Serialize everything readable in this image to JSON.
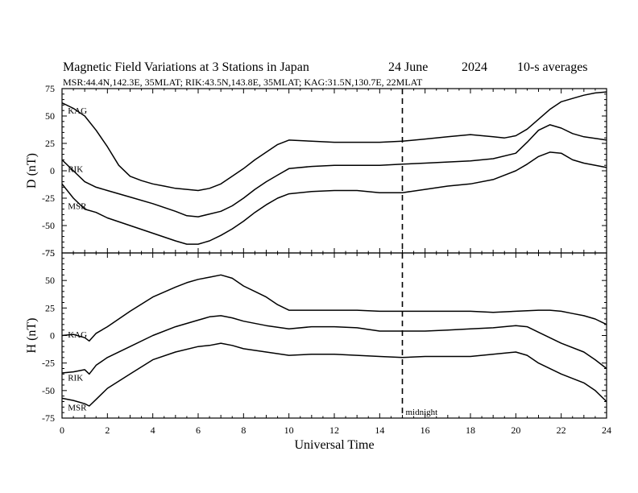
{
  "header": {
    "title": "Magnetic Field Variations at 3 Stations in Japan",
    "date": "24 June",
    "year": "2024",
    "averaging": "10-s averages",
    "stations_info": "MSR:44.4N,142.3E, 35MLAT;  RIK:43.5N,143.8E, 35MLAT;  KAG:31.5N,130.7E, 22MLAT"
  },
  "colors": {
    "line": "#000000",
    "background": "#ffffff"
  },
  "chart_data": [
    {
      "type": "line",
      "panel": "top",
      "ylabel": "D (nT)",
      "xlabel": "",
      "xlim": [
        0,
        24
      ],
      "ylim": [
        -75,
        75
      ],
      "xticks": [
        0,
        2,
        4,
        6,
        8,
        10,
        12,
        14,
        16,
        18,
        20,
        22,
        24
      ],
      "yticks": [
        -75,
        -50,
        -25,
        0,
        25,
        50,
        75
      ],
      "grid": false,
      "series": [
        {
          "name": "KAG",
          "label_at": [
            0.15,
            55
          ],
          "x": [
            0,
            0.5,
            1,
            1.5,
            2,
            2.5,
            3,
            3.5,
            4,
            4.5,
            5,
            5.5,
            6,
            6.5,
            7,
            7.5,
            8,
            8.5,
            9,
            9.5,
            10,
            11,
            12,
            13,
            14,
            15,
            16,
            17,
            18,
            19,
            19.5,
            20,
            20.5,
            21,
            21.5,
            22,
            22.5,
            23,
            23.5,
            24
          ],
          "y": [
            62,
            57,
            50,
            37,
            22,
            5,
            -5,
            -9,
            -12,
            -14,
            -16,
            -17,
            -18,
            -16,
            -12,
            -5,
            2,
            10,
            17,
            24,
            28,
            27,
            26,
            26,
            26,
            27,
            29,
            31,
            33,
            31,
            30,
            32,
            38,
            47,
            56,
            63,
            66,
            69,
            71,
            72
          ]
        },
        {
          "name": "RIK",
          "label_at": [
            0.15,
            2
          ],
          "x": [
            0,
            0.5,
            1,
            1.5,
            2,
            3,
            4,
            5,
            5.5,
            6,
            7,
            7.5,
            8,
            8.5,
            9,
            9.5,
            10,
            11,
            12,
            13,
            14,
            15,
            16,
            17,
            18,
            19,
            20,
            20.5,
            21,
            21.5,
            22,
            22.5,
            23,
            24
          ],
          "y": [
            10,
            0,
            -10,
            -15,
            -18,
            -24,
            -30,
            -37,
            -41,
            -42,
            -37,
            -32,
            -25,
            -17,
            -10,
            -4,
            2,
            4,
            5,
            5,
            5,
            6,
            7,
            8,
            9,
            11,
            16,
            26,
            37,
            42,
            39,
            34,
            31,
            28
          ]
        },
        {
          "name": "MSR",
          "label_at": [
            0.15,
            -32
          ],
          "x": [
            0,
            0.5,
            1,
            1.5,
            2,
            3,
            4,
            5,
            5.5,
            6,
            6.5,
            7,
            7.5,
            8,
            8.5,
            9,
            9.5,
            10,
            11,
            12,
            13,
            14,
            15,
            16,
            17,
            18,
            19,
            20,
            20.5,
            21,
            21.5,
            22,
            22.5,
            23,
            24
          ],
          "y": [
            -12,
            -25,
            -35,
            -38,
            -43,
            -50,
            -57,
            -64,
            -67,
            -67,
            -64,
            -59,
            -53,
            -46,
            -38,
            -31,
            -25,
            -21,
            -19,
            -18,
            -18,
            -20,
            -20,
            -17,
            -14,
            -12,
            -8,
            0,
            6,
            13,
            17,
            16,
            10,
            7,
            3
          ]
        }
      ]
    },
    {
      "type": "line",
      "panel": "bottom",
      "ylabel": "H (nT)",
      "xlabel": "Universal Time",
      "xlim": [
        0,
        24
      ],
      "ylim": [
        -75,
        75
      ],
      "xticks": [
        0,
        2,
        4,
        6,
        8,
        10,
        12,
        14,
        16,
        18,
        20,
        22,
        24
      ],
      "yticks": [
        -75,
        -50,
        -25,
        0,
        25,
        50,
        75
      ],
      "grid": false,
      "annotation": {
        "text": "midnight",
        "x": 15,
        "style": "dashed-vertical-line"
      },
      "series": [
        {
          "name": "KAG",
          "label_at": [
            0.15,
            1
          ],
          "x": [
            0,
            0.5,
            1,
            1.2,
            1.5,
            2,
            3,
            4,
            5,
            5.5,
            6,
            6.5,
            7,
            7.5,
            8,
            8.5,
            9,
            9.5,
            10,
            11,
            12,
            13,
            14,
            15,
            16,
            17,
            18,
            19,
            20,
            21,
            21.5,
            22,
            22.5,
            23,
            23.5,
            24
          ],
          "y": [
            0,
            1,
            -2,
            -5,
            2,
            8,
            22,
            35,
            44,
            48,
            51,
            53,
            55,
            52,
            45,
            40,
            35,
            28,
            23,
            23,
            23,
            23,
            22,
            22,
            22,
            22,
            22,
            21,
            22,
            23,
            23,
            22,
            20,
            18,
            15,
            10
          ]
        },
        {
          "name": "RIK",
          "label_at": [
            0.15,
            -38
          ],
          "x": [
            0,
            0.5,
            1,
            1.2,
            1.5,
            2,
            3,
            4,
            5,
            6,
            6.5,
            7,
            7.5,
            8,
            9,
            10,
            11,
            12,
            13,
            14,
            15,
            16,
            17,
            18,
            19,
            20,
            20.5,
            21,
            22,
            23,
            23.5,
            24
          ],
          "y": [
            -34,
            -33,
            -31,
            -35,
            -27,
            -20,
            -10,
            0,
            8,
            14,
            17,
            18,
            16,
            13,
            9,
            6,
            8,
            8,
            7,
            4,
            4,
            4,
            5,
            6,
            7,
            9,
            8,
            3,
            -7,
            -15,
            -22,
            -30
          ]
        },
        {
          "name": "MSR",
          "label_at": [
            0.15,
            -65
          ],
          "x": [
            0,
            0.5,
            1,
            1.2,
            1.5,
            2,
            3,
            4,
            5,
            6,
            6.5,
            7,
            7.5,
            8,
            9,
            10,
            11,
            12,
            13,
            14,
            15,
            16,
            17,
            18,
            19,
            20,
            20.5,
            21,
            22,
            23,
            23.5,
            24
          ],
          "y": [
            -57,
            -59,
            -62,
            -64,
            -58,
            -48,
            -35,
            -22,
            -15,
            -10,
            -9,
            -7,
            -9,
            -12,
            -15,
            -18,
            -17,
            -17,
            -18,
            -19,
            -20,
            -19,
            -19,
            -19,
            -17,
            -15,
            -18,
            -25,
            -35,
            -43,
            -50,
            -60
          ]
        }
      ]
    }
  ]
}
